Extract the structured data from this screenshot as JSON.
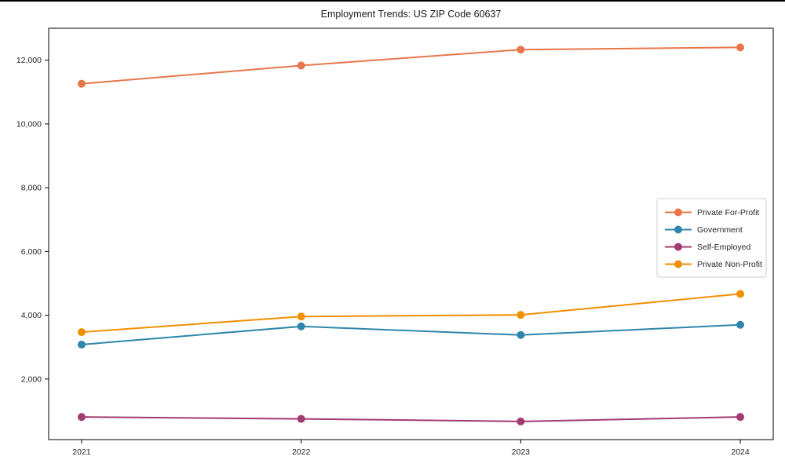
{
  "chart_data": {
    "type": "line",
    "title": "Employment Trends: US ZIP Code 60637",
    "x": [
      2021,
      2022,
      2023,
      2024
    ],
    "x_tick_labels": [
      "2021",
      "2022",
      "2023",
      "2024"
    ],
    "series": [
      {
        "name": "Private For-Profit",
        "color": "#E8764B",
        "values": [
          11260,
          11830,
          12330,
          12400
        ]
      },
      {
        "name": "Government",
        "color": "#2E86AB",
        "values": [
          3080,
          3650,
          3380,
          3700
        ]
      },
      {
        "name": "Self-Employed",
        "color": "#A23B72",
        "values": [
          810,
          750,
          670,
          810
        ]
      },
      {
        "name": "Private Non-Profit",
        "color": "#F18F01",
        "values": [
          3470,
          3960,
          4010,
          4670
        ]
      }
    ],
    "xlim": [
      2020.85,
      2024.15
    ],
    "ylim": [
      100,
      13000
    ],
    "yticks": [
      2000,
      4000,
      6000,
      8000,
      10000,
      12000
    ],
    "ytick_format": "comma",
    "grid": false,
    "legend": {
      "position": "center-right"
    },
    "axis_color": "#000000",
    "tick_label_color": "#262626"
  }
}
